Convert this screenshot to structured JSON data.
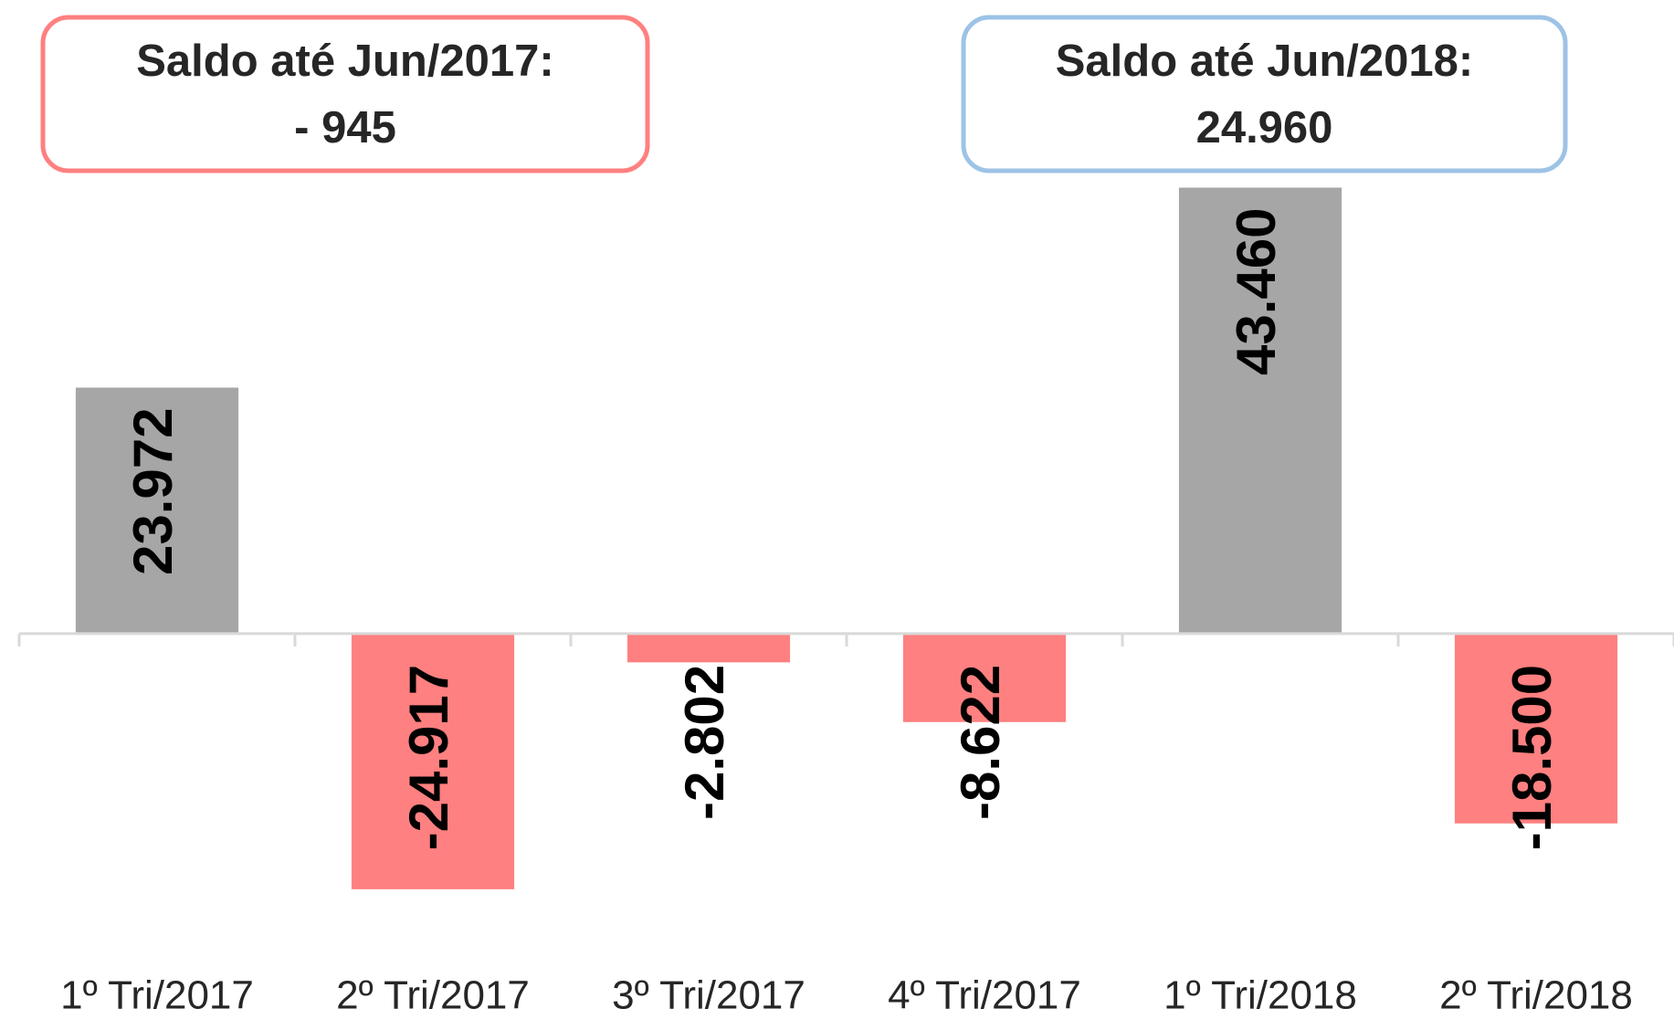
{
  "chart_data": {
    "type": "bar",
    "categories": [
      "1º Tri/2017",
      "2º Tri/2017",
      "3º Tri/2017",
      "4º Tri/2017",
      "1º Tri/2018",
      "2º Tri/2018"
    ],
    "values": [
      23972,
      -24917,
      -2802,
      -8622,
      43460,
      -18500
    ],
    "value_labels": [
      "23.972",
      "-24.917",
      "-2.802",
      "-8.622",
      "43.460",
      "-18.500"
    ],
    "colors": [
      "#a6a6a6",
      "#ff8080",
      "#ff8080",
      "#ff8080",
      "#a6a6a6",
      "#ff8080"
    ],
    "ylim": [
      -30000,
      50000
    ],
    "annotations": [
      {
        "lines": [
          "Saldo até Jun/2017:",
          "- 945"
        ],
        "color": "#ff8080"
      },
      {
        "lines": [
          "Saldo até Jun/2018:",
          "24.960"
        ],
        "color": "#9dc3e6"
      }
    ]
  }
}
